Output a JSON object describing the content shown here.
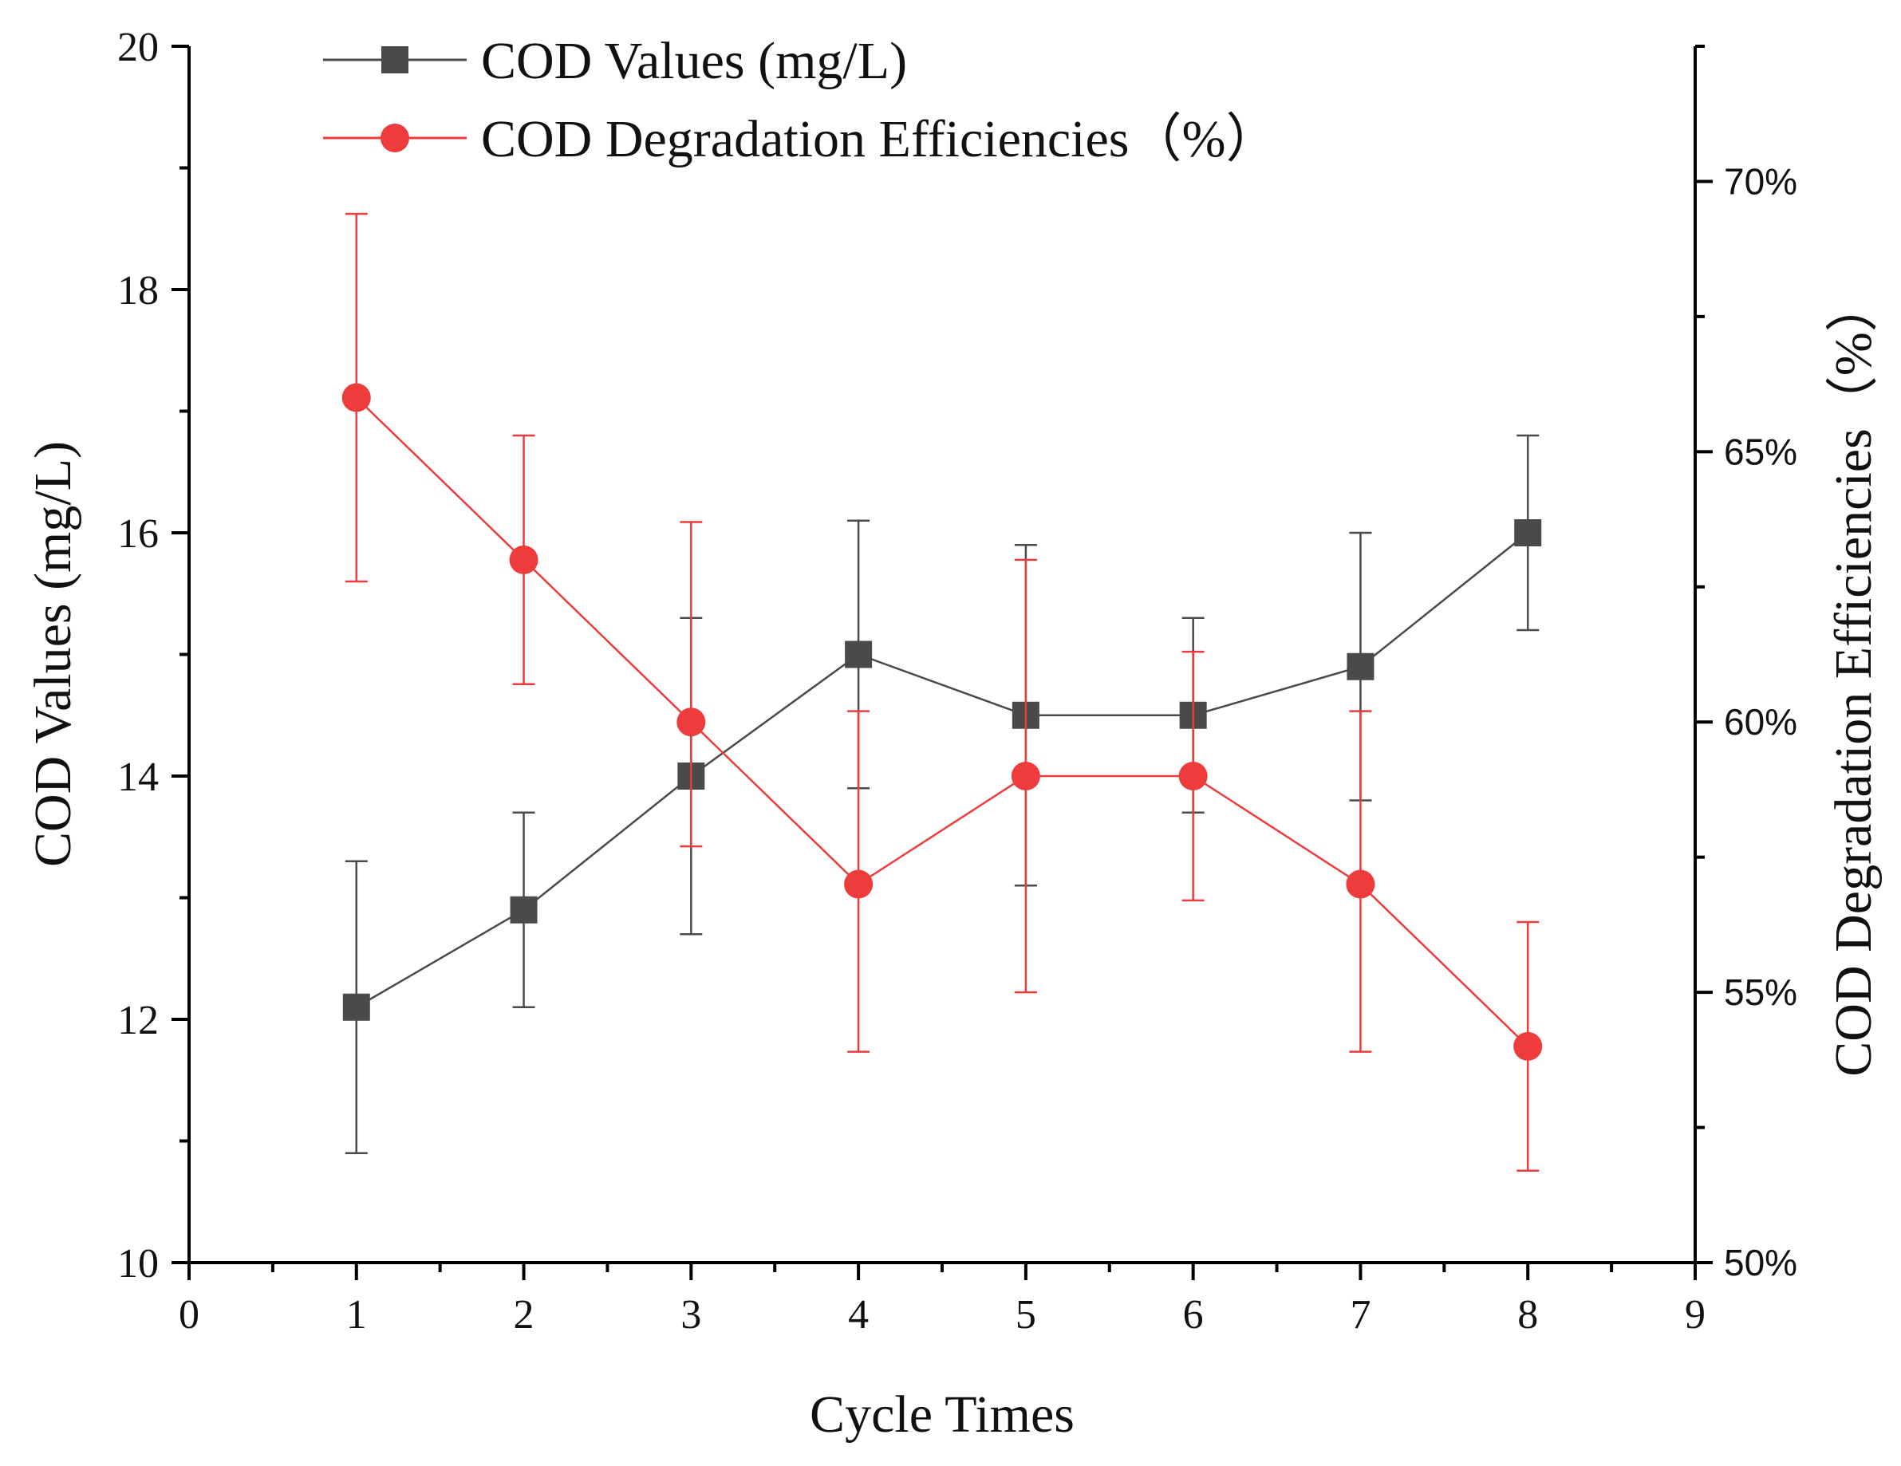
{
  "chart_data": {
    "type": "line",
    "title": "",
    "categories": [
      1,
      2,
      3,
      4,
      5,
      6,
      7,
      8
    ],
    "xlabel": "Cycle Times",
    "xlim": [
      0,
      9
    ],
    "xticks": [
      "0",
      "1",
      "2",
      "3",
      "4",
      "5",
      "6",
      "7",
      "8",
      "9"
    ],
    "ylabel_left": "COD Values (mg/L)",
    "ylim_left": [
      10,
      20
    ],
    "yticks_left": [
      "10",
      "12",
      "14",
      "16",
      "18",
      "20"
    ],
    "ylabel_right": "COD Degradation Efficiencies（%）",
    "ylim_right": [
      50,
      72.5
    ],
    "yticks_right": [
      "50%",
      "55%",
      "60%",
      "65%",
      "70%"
    ],
    "grid": false,
    "legend_position": "top-left",
    "series": [
      {
        "name": "COD Values (mg/L)",
        "axis": "left",
        "marker": "square",
        "color": "#4a4a4a",
        "values": [
          12.1,
          12.9,
          14.0,
          15.0,
          14.5,
          14.5,
          14.9,
          16.0
        ],
        "err_low": [
          10.9,
          12.1,
          12.7,
          13.9,
          13.1,
          13.7,
          13.8,
          15.2
        ],
        "err_high": [
          13.3,
          13.7,
          15.3,
          16.1,
          15.9,
          15.3,
          16.0,
          16.8
        ]
      },
      {
        "name": "COD Degradation Efficiencies（%）",
        "axis": "right",
        "marker": "circle",
        "color": "#ee3b3b",
        "values": [
          66,
          63,
          60,
          57,
          59,
          59,
          57,
          54
        ],
        "err_low": [
          62.6,
          60.7,
          57.7,
          53.9,
          55.0,
          56.7,
          53.9,
          51.7
        ],
        "err_high": [
          69.4,
          65.3,
          63.7,
          60.2,
          63.0,
          61.3,
          60.2,
          56.3
        ]
      }
    ]
  }
}
